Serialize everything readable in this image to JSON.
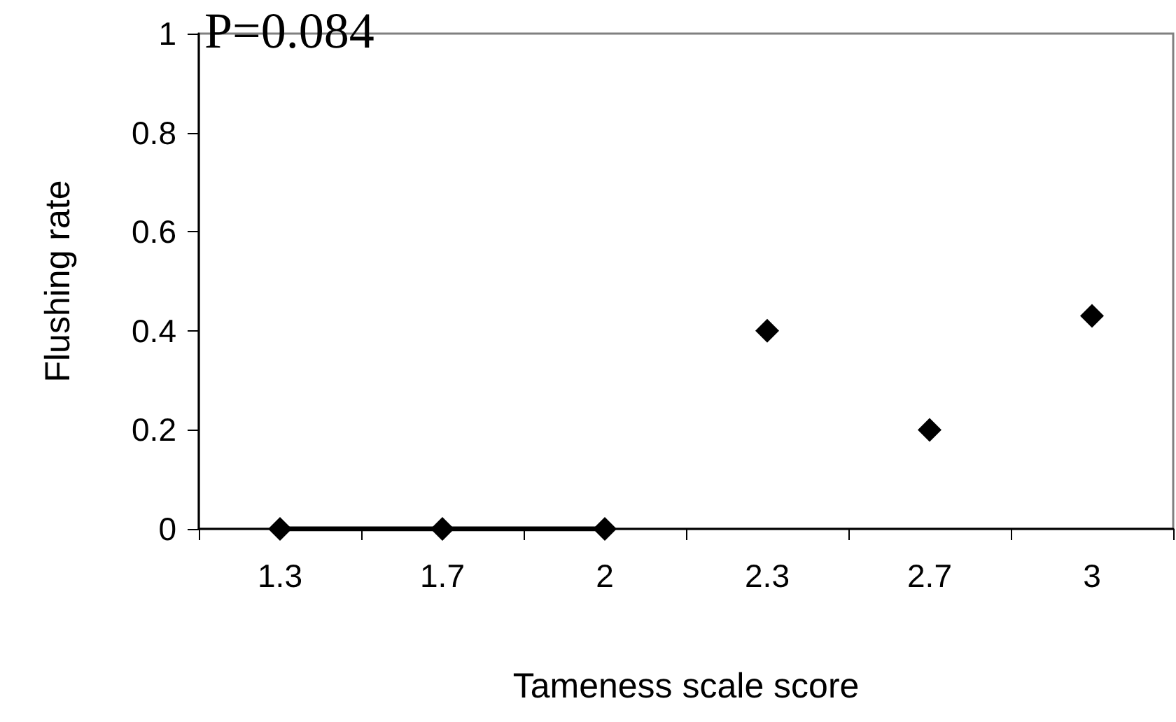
{
  "chart_data": {
    "type": "scatter",
    "xlabel": "Tameness scale score",
    "ylabel": "Flushing rate",
    "annotations": [
      "P=0.084"
    ],
    "categories": [
      "1.3",
      "1.7",
      "2",
      "2.3",
      "2.7",
      "3"
    ],
    "series": [
      {
        "color": "#000000",
        "values": [
          0,
          0,
          0,
          0.4,
          0.2,
          0.43
        ]
      },
      {
        "type": "line",
        "color": "#000000",
        "marker": "none",
        "line_style": "solid",
        "values": [
          0,
          0,
          0,
          null,
          null,
          null
        ]
      }
    ],
    "ylim": [
      0,
      1
    ],
    "yticks": [
      0,
      0.2,
      0.4,
      0.6,
      0.8,
      1
    ],
    "marker": "diamond"
  }
}
